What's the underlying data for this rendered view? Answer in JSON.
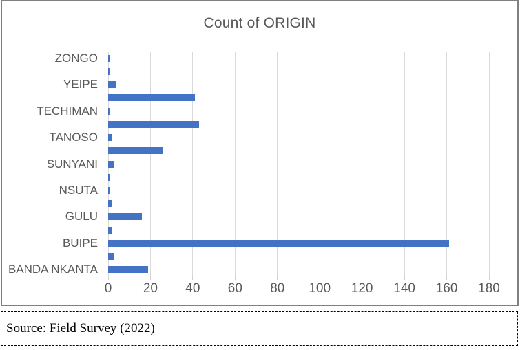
{
  "chart_data": {
    "type": "bar",
    "orientation": "horizontal",
    "title": "Count of ORIGIN",
    "categories": [
      "ZONGO",
      "",
      "YEIPE",
      "",
      "TECHIMAN",
      "",
      "TANOSO",
      "",
      "SUNYANI",
      "",
      "NSUTA",
      "",
      "GULU",
      "",
      "BUIPE",
      "",
      "BANDA NKANTA"
    ],
    "values": [
      1,
      1,
      4,
      41,
      1,
      43,
      2,
      26,
      3,
      1,
      1,
      2,
      16,
      2,
      161,
      3,
      19
    ],
    "xlim": [
      0,
      180
    ],
    "xticks": [
      0,
      20,
      40,
      60,
      80,
      100,
      120,
      140,
      160,
      180
    ],
    "grid": "vertical-gridlines",
    "legend": "none",
    "bar_color": "#4472C4",
    "gridline_color": "#D9D9D9",
    "tick_color": "#D0D0D0",
    "axis_text_color": "#595959",
    "title_color": "#595959"
  },
  "footer": {
    "source_note": "Source: Field Survey (2022)"
  }
}
